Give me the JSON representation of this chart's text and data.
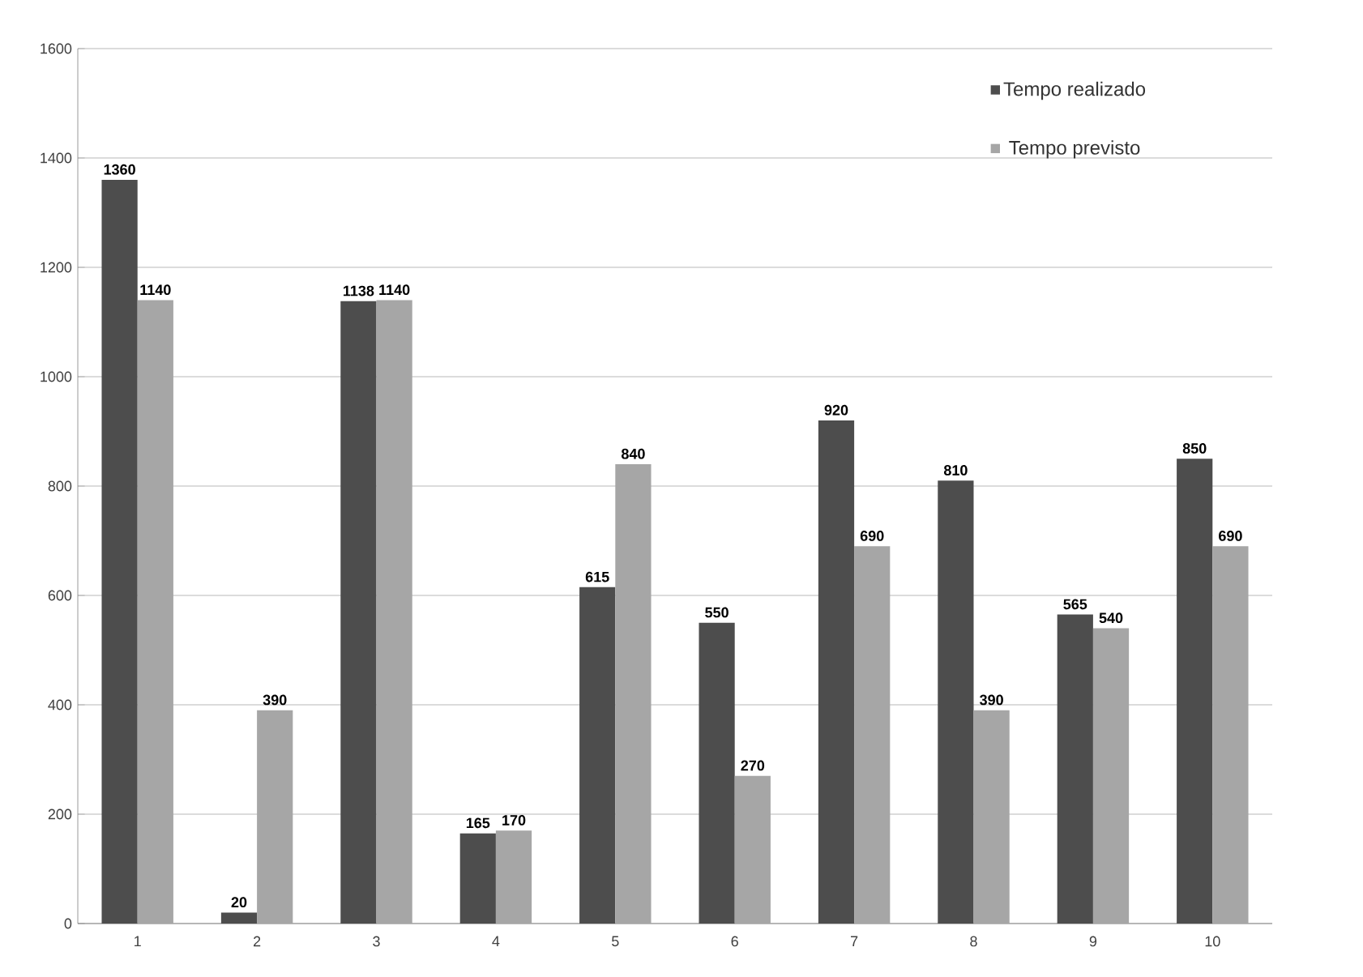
{
  "chart_data": {
    "type": "bar",
    "categories": [
      "1",
      "2",
      "3",
      "4",
      "5",
      "6",
      "7",
      "8",
      "9",
      "10"
    ],
    "series": [
      {
        "name": "Tempo realizado",
        "color": "#4d4d4d",
        "values": [
          1360,
          20,
          1138,
          165,
          615,
          550,
          920,
          810,
          565,
          850
        ]
      },
      {
        "name": "Tempo previsto",
        "color": "#a6a6a6",
        "values": [
          1140,
          390,
          1140,
          170,
          840,
          270,
          690,
          390,
          540,
          690
        ]
      }
    ],
    "ylim": [
      0,
      1600
    ],
    "yticks": [
      0,
      200,
      400,
      600,
      800,
      1000,
      1200,
      1400,
      1600
    ],
    "grid": "y",
    "legend": "top right",
    "data_labels": true
  }
}
